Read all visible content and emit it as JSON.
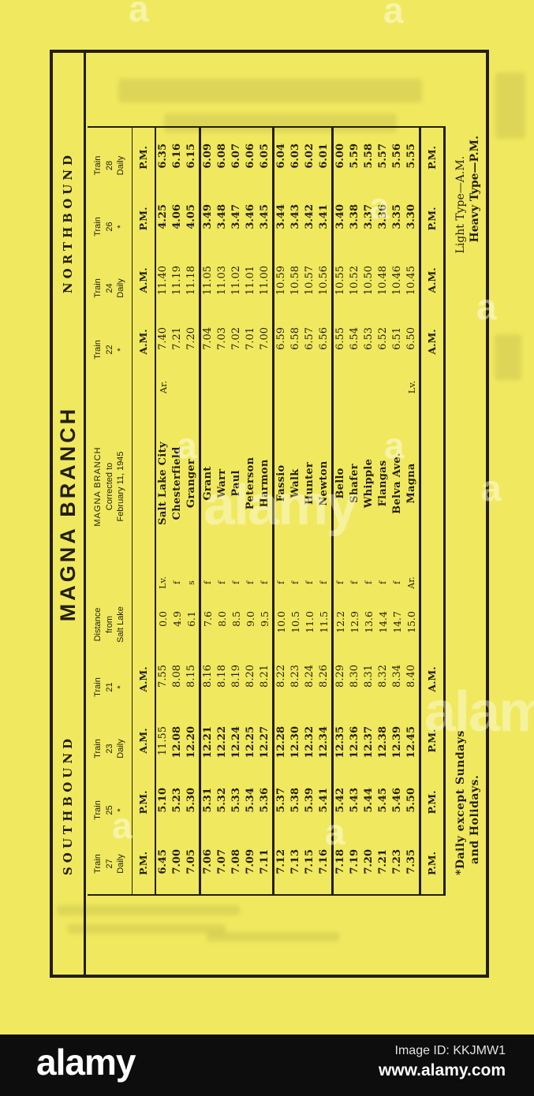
{
  "page": {
    "paper_color": "#f0e95f",
    "ink_color": "#241e12"
  },
  "watermark": {
    "brand": "alamy",
    "letter": "a",
    "image_id": "Image ID: KKJMW1",
    "site": "www.alamy.com"
  },
  "timetable": {
    "direction_left": "SOUTHBOUND",
    "direction_right": "NORTHBOUND",
    "title": "MAGNA BRANCH",
    "train_word": "Train",
    "center_header": [
      "MAGNA BRANCH",
      "Corrected to",
      "February 11, 1945"
    ],
    "distance_header": [
      "Distance",
      "from",
      "Salt Lake"
    ],
    "southbound_trains": [
      {
        "number": "27",
        "note": "Daily",
        "top": "P.M.",
        "bottom": "P.M.",
        "weight": "heavy",
        "times": [
          "6.45",
          "7.00",
          "7.05",
          "7.06",
          "7.07",
          "7.08",
          "7.09",
          "7.11",
          "7.12",
          "7.13",
          "7.15",
          "7.16",
          "7.18",
          "7.19",
          "7.20",
          "7.21",
          "7.23",
          "7.35"
        ]
      },
      {
        "number": "25",
        "note": "*",
        "top": "P.M.",
        "bottom": "P.M.",
        "weight": "heavy",
        "times": [
          "5.10",
          "5.23",
          "5.30",
          "5.31",
          "5.32",
          "5.33",
          "5.34",
          "5.36",
          "5.37",
          "5.38",
          "5.39",
          "5.41",
          "5.42",
          "5.43",
          "5.44",
          "5.45",
          "5.46",
          "5.50"
        ]
      },
      {
        "number": "23",
        "note": "Daily",
        "top": "A.M.",
        "bottom": "P.M.",
        "weight": "heavy",
        "light_indices": [
          0
        ],
        "times": [
          "11.55",
          "12.08",
          "12.20",
          "12.21",
          "12.22",
          "12.24",
          "12.25",
          "12.27",
          "12.28",
          "12.30",
          "12.32",
          "12.34",
          "12.35",
          "12.36",
          "12.37",
          "12.38",
          "12.39",
          "12.45"
        ]
      },
      {
        "number": "21",
        "note": "*",
        "top": "A.M.",
        "bottom": "A.M.",
        "weight": "light",
        "times": [
          "7.55",
          "8.08",
          "8.15",
          "8.16",
          "8.18",
          "8.19",
          "8.20",
          "8.21",
          "8.22",
          "8.23",
          "8.24",
          "8.26",
          "8.29",
          "8.30",
          "8.31",
          "8.32",
          "8.34",
          "8.40"
        ]
      }
    ],
    "northbound_trains": [
      {
        "number": "22",
        "note": "*",
        "top": "A.M.",
        "bottom": "A.M.",
        "weight": "light",
        "times": [
          "7.40",
          "7.21",
          "7.20",
          "7.04",
          "7.03",
          "7.02",
          "7.01",
          "7.00",
          "6.59",
          "6.58",
          "6.57",
          "6.56",
          "6.55",
          "6.54",
          "6.53",
          "6.52",
          "6.51",
          "6.50"
        ]
      },
      {
        "number": "24",
        "note": "Daily",
        "top": "A.M.",
        "bottom": "A.M.",
        "weight": "light",
        "times": [
          "11.40",
          "11.19",
          "11.18",
          "11.05",
          "11.03",
          "11.02",
          "11.01",
          "11.00",
          "10.59",
          "10.58",
          "10.57",
          "10.56",
          "10.55",
          "10.52",
          "10.50",
          "10.48",
          "10.46",
          "10.45"
        ]
      },
      {
        "number": "26",
        "note": "*",
        "top": "P.M.",
        "bottom": "P.M.",
        "weight": "heavy",
        "times": [
          "4.25",
          "4.06",
          "4.05",
          "3.49",
          "3.48",
          "3.47",
          "3.46",
          "3.45",
          "3.44",
          "3.43",
          "3.42",
          "3.41",
          "3.40",
          "3.38",
          "3.37",
          "3.36",
          "3.35",
          "3.30"
        ]
      },
      {
        "number": "28",
        "note": "Daily",
        "top": "P.M.",
        "bottom": "P.M.",
        "weight": "heavy",
        "times": [
          "6.35",
          "6.16",
          "6.15",
          "6.09",
          "6.08",
          "6.07",
          "6.06",
          "6.05",
          "6.04",
          "6.03",
          "6.02",
          "6.01",
          "6.00",
          "5.59",
          "5.58",
          "5.57",
          "5.56",
          "5.55"
        ]
      }
    ],
    "stations": [
      {
        "left": "Lv.",
        "name": "Salt Lake City",
        "right": "Ar.",
        "distance": "0.0"
      },
      {
        "left": "f",
        "name": "Chesterfield",
        "right": "",
        "distance": "4.9"
      },
      {
        "left": "s",
        "name": "Granger",
        "right": "",
        "distance": "6.1"
      },
      {
        "left": "f",
        "name": "Grant",
        "right": "",
        "distance": "7.6"
      },
      {
        "left": "f",
        "name": "Warr",
        "right": "",
        "distance": "8.0"
      },
      {
        "left": "f",
        "name": "Paul",
        "right": "",
        "distance": "8.5"
      },
      {
        "left": "f",
        "name": "Peterson",
        "right": "",
        "distance": "9.0"
      },
      {
        "left": "f",
        "name": "Harmon",
        "right": "",
        "distance": "9.5"
      },
      {
        "left": "f",
        "name": "Fassio",
        "right": "",
        "distance": "10.0"
      },
      {
        "left": "f",
        "name": "Walk",
        "right": "",
        "distance": "10.5"
      },
      {
        "left": "f",
        "name": "Hunter",
        "right": "",
        "distance": "11.0"
      },
      {
        "left": "f",
        "name": "Newton",
        "right": "",
        "distance": "11.5"
      },
      {
        "left": "f",
        "name": "Bello",
        "right": "",
        "distance": "12.2"
      },
      {
        "left": "f",
        "name": "Shafer",
        "right": "",
        "distance": "12.9"
      },
      {
        "left": "f",
        "name": "Whipple",
        "right": "",
        "distance": "13.6"
      },
      {
        "left": "f",
        "name": "Flangas",
        "right": "",
        "distance": "14.4"
      },
      {
        "left": "f",
        "name": "Belva Ave.",
        "right": "",
        "distance": "14.7"
      },
      {
        "left": "Ar.",
        "name": "Magna",
        "right": "Lv.",
        "distance": "15.0"
      }
    ],
    "group_sizes": [
      3,
      5,
      4,
      6
    ],
    "footnote_left": [
      "*Daily except Sundays",
      "and Holidays."
    ],
    "footnote_right": [
      "Light Type—A.M.",
      "Heavy Type—P.M."
    ]
  }
}
